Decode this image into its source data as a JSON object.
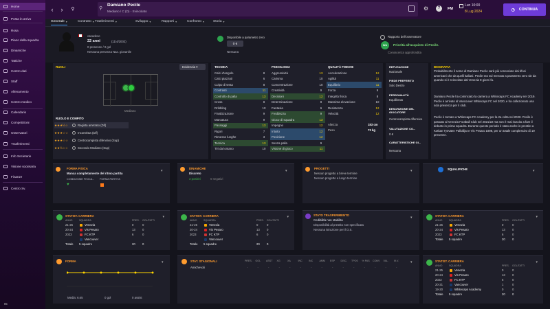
{
  "sidebar": {
    "items": [
      "Home",
      "Posta in arrivo",
      "Rosa",
      "Piano della squadra",
      "Dinamiche",
      "Tattiche",
      "Centro dati",
      "Staff",
      "Allenamento",
      "Centro medico",
      "Calendario",
      "Competizioni",
      "Osservatori",
      "Trasferimenti",
      "Info Societarie",
      "Visione societaria",
      "Finanze",
      "Centro Sv."
    ],
    "bottom": "85"
  },
  "header": {
    "name": "Damiano Pecile",
    "sub": "Mediano / C (D) - Svincolato",
    "date_time": "Lun 10:00",
    "date": "8 Lug 2024",
    "fm": "FM",
    "continue": "CONTINUA"
  },
  "tabs": [
    "Generale",
    "Contratto",
    "Trasferimenti",
    "Sviluppo",
    "Rapporti",
    "Confronto",
    "Storia"
  ],
  "profile": {
    "nat": "canadese",
    "age": "22 anni",
    "dob": "(11/4/2002)",
    "caps": "0 presenze / 0 gol",
    "status": "Nessuna presenza Naz. giovanile"
  },
  "contract": {
    "label": "Disponibile a parametro zero",
    "fee": "0 €",
    "extra": "Nessuna"
  },
  "scout": {
    "label": "Rapporto dell'osservatore",
    "rating": "N/A",
    "text": "Priorità all'acquisto di Pecile.",
    "sub": "Conoscenza approfondita"
  },
  "ruoli": {
    "title": "RUOLI",
    "dropdown": "Evidenzia",
    "position": "Mediano",
    "roles_title": "RUOLO E COMPITO",
    "roles": [
      "Regista arretrato (Dif)",
      "Incontrista (Dif)",
      "Centrocampista difensivo (Sup)",
      "Secondo Mediano (Sup)"
    ]
  },
  "tecnica": {
    "title": "TECNICA",
    "items": [
      [
        "Calci d'angolo",
        "8"
      ],
      [
        "Calci piazzati",
        "6"
      ],
      [
        "Colpo di testa",
        "8"
      ],
      [
        "Contrasti",
        "11"
      ],
      [
        "Controllo di palla",
        "13"
      ],
      [
        "Cross",
        "8"
      ],
      [
        "Dribbling",
        "10"
      ],
      [
        "Finalizzazione",
        "9"
      ],
      [
        "Marcatura",
        "9"
      ],
      [
        "Passaggi",
        "13"
      ],
      [
        "Rigori",
        "7"
      ],
      [
        "Rimesse lunghe",
        "3"
      ],
      [
        "Tecnica",
        "13"
      ],
      [
        "Tiri da lontano",
        "10"
      ]
    ]
  },
  "psicologia": {
    "title": "PSICOLOGIA",
    "items": [
      [
        "Aggressività",
        "13"
      ],
      [
        "Carisma",
        "10"
      ],
      [
        "Concentrazione",
        "10"
      ],
      [
        "Creatività",
        "9"
      ],
      [
        "Decisioni",
        "12"
      ],
      [
        "Determinazione",
        "8"
      ],
      [
        "Fantasia",
        "6"
      ],
      [
        "Freddezza",
        "9"
      ],
      [
        "Gioco di squadra",
        "13"
      ],
      [
        "Impegno",
        "12"
      ],
      [
        "Intuito",
        "12"
      ],
      [
        "Posizione",
        "12"
      ],
      [
        "Senza palla",
        "9"
      ],
      [
        "Visione di gioco",
        "11"
      ]
    ]
  },
  "fisica": {
    "title": "QUALITÀ FISICHE",
    "items": [
      [
        "Accelerazione",
        "12"
      ],
      [
        "Agilità",
        "11"
      ],
      [
        "Equilibrio",
        "11"
      ],
      [
        "Forza",
        "9"
      ],
      [
        "Integrità fisica",
        "8"
      ],
      [
        "Massima elevazione",
        "10"
      ],
      [
        "Resistenza",
        "12"
      ],
      [
        "Velocità",
        "12"
      ]
    ],
    "height_label": "Altezza",
    "height": "183 cm",
    "weight_label": "Peso",
    "weight": "73 kg"
  },
  "info": {
    "rep_label": "REPUTAZIONE",
    "rep": "Nazionale",
    "foot_label": "PIEDE PREFERITO",
    "foot": "Solo Destro",
    "pers_label": "PERSONALITÀ",
    "pers": "Equilibrato",
    "role_label": "DESCRIZIONE DEL GIOCATORE",
    "role": "Centrocampista difensivo",
    "val_label": "VALUTAZIONE CO...",
    "val": "0 €",
    "car_label": "CARATTERISTICHE GI...",
    "car": "Nessuna"
  },
  "bio": {
    "title": "BIOGRAFIA",
    "p1": "Probabilmente il nome di Damiano Pecile sarà più conosciuto dai tifosi americani che da quelli italiani. Pecile era sul mercato a parametro zero sin da quando si è svincolato dal Venezia 8 giorni fa.",
    "p2": "Damiano Pecile ha cominciato la carriera a Whitecaps FC Academy nel 2019. Pecile è arrivato al Vancouver Whitecaps FC nel 2020, e ha collezionato una sola presenza per il club.",
    "p3": "Pecile è tornato a Whitecaps FC Academy per la 2a volta nel 2020. Pecile è passato al Venezia Football Club nel 2021/22 ma non è mai riuscito a fare il debutto in prima squadra. Durante questo periodo è stato anche in prestito a Kotkan Työväen Palloilijat e Vis Pesaro 1898, per un totale complessivo di 19 presenze."
  },
  "forma_fisica": {
    "title": "FORMA FISICA",
    "text": "Manca completamente del ritmo partita",
    "sub1": "CONDIZIONE FISICA...",
    "sub2": "FORMA PARTITA"
  },
  "dinamiche": {
    "title": "DINAMICHE",
    "text": "Discreto",
    "pos": "3 positivi",
    "neg": "0 negativi"
  },
  "progetti": {
    "title": "PROGETTI",
    "text": "Nessun progetto a breve termine",
    "sub": "Nessun progetto a lungo termine"
  },
  "squalifiche": {
    "title": "SQUALIFICHE"
  },
  "carriera_cols": [
    "ANNO",
    "SQUADRA",
    "PRES.",
    "GOL/TATTI"
  ],
  "carriera1": {
    "title": "STATIST. CARRIERA",
    "rows": [
      [
        "21-25",
        "Venezia",
        "0",
        "0"
      ],
      [
        "20-24",
        "Vis Pesaro",
        "13",
        "0"
      ],
      [
        "2023",
        "FC KTP",
        "6",
        "0"
      ],
      [
        "",
        "Vancouver",
        "",
        " "
      ]
    ],
    "tot": [
      "Totale",
      "5 squadre",
      "20",
      "0"
    ]
  },
  "trasferimento": {
    "title": "STATO TRASFERIMENTO",
    "text": "Cedibilità non stabilita",
    "sub1": "Disponibilità al prestito non specificata",
    "sub2": "Nessuna istruzione per il D.S."
  },
  "carriera3": {
    "title": "STATIST. CARRIERA",
    "rows": [
      [
        "21-25",
        "Venezia",
        "0",
        "0"
      ],
      [
        "20-24",
        "Vis Pesaro",
        "13",
        "0"
      ],
      [
        "2023",
        "FC KTP",
        "6",
        "0"
      ]
    ],
    "tot": [
      "Totale",
      "5 squadre",
      "20",
      "0"
    ]
  },
  "forma": {
    "title": "FORMA",
    "media": "Media: 6.65",
    "gol": "0 gol",
    "assist": "0 assist"
  },
  "stagionali": {
    "title": "STAT. STAGIONALI",
    "cols": [
      "PRES.",
      "GOL",
      "ASST",
      "XG",
      "XA",
      "INC",
      "INC",
      "AMM",
      "ESP",
      "DISC.",
      "TPOS",
      "% PAS",
      "CONV",
      "VAL.",
      "M.V."
    ],
    "row": "Amichevoli"
  },
  "carriera4": {
    "title": "STATIST. CARRIERA",
    "rows": [
      [
        "21-25",
        "Venezia",
        "0",
        "0"
      ],
      [
        "20-24",
        "Vis Pesaro",
        "13",
        "0"
      ],
      [
        "2023",
        "FC KTP",
        "6",
        "0"
      ],
      [
        "20-21",
        "Vancouver",
        "1",
        "0"
      ],
      [
        "19-20",
        "Whitecaps Academy",
        "0",
        "0"
      ]
    ],
    "tot": [
      "Totale",
      "5 squadre",
      "20",
      "0"
    ]
  }
}
